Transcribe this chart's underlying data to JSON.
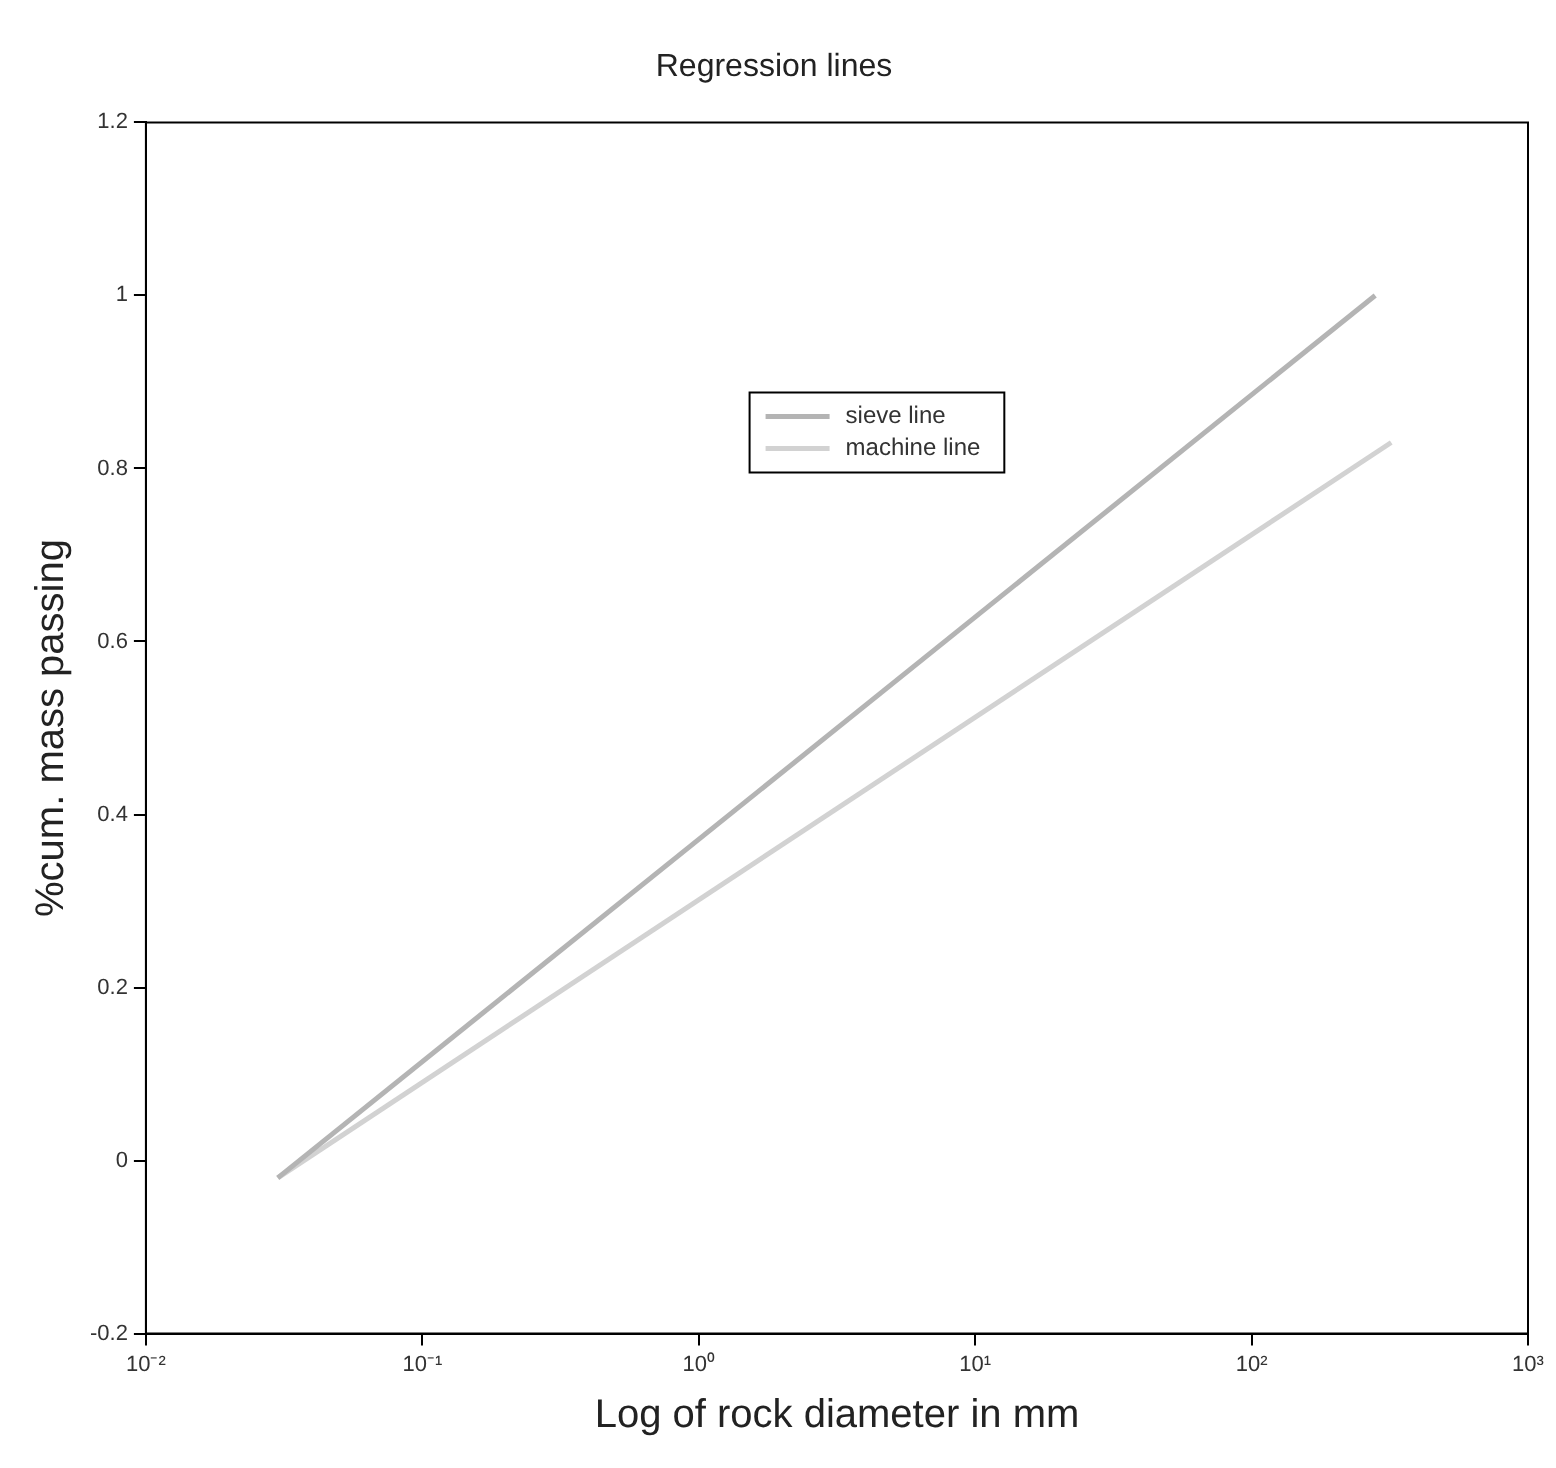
{
  "chart_data": {
    "type": "line",
    "title": "Regression lines",
    "xlabel": "Log of rock diameter in mm",
    "ylabel": "%cum. mass passing",
    "log": "x",
    "grid": false,
    "legend": "top",
    "marker": "none",
    "line_style": "solid",
    "xlim": [
      0.01,
      1000
    ],
    "xticks": [
      {
        "value": 0.01,
        "label": "10⁻²"
      },
      {
        "value": 0.1,
        "label": "10⁻¹"
      },
      {
        "value": 1,
        "label": "10⁰"
      },
      {
        "value": 10,
        "label": "10¹"
      },
      {
        "value": 100,
        "label": "10²"
      },
      {
        "value": 1000,
        "label": "10³"
      }
    ],
    "ylim": [
      -0.2,
      1.2
    ],
    "yticks": [
      -0.2,
      0,
      0.2,
      0.4,
      0.6,
      0.8,
      1,
      1.2
    ],
    "series": [
      {
        "name": "sieve line",
        "color": "#b4b4b4",
        "x": [
          0.03,
          280
        ],
        "values": [
          -0.02,
          1.0
        ]
      },
      {
        "name": "machine line",
        "color": "#d2d2d2",
        "x": [
          0.03,
          320
        ],
        "values": [
          -0.02,
          0.83
        ]
      }
    ]
  }
}
